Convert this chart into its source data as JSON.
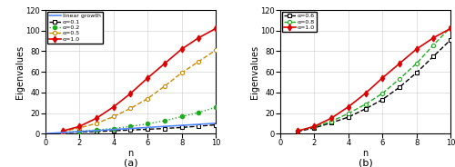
{
  "n": [
    1,
    2,
    3,
    4,
    5,
    6,
    7,
    8,
    9,
    10
  ],
  "linear": [
    0,
    1,
    2,
    3,
    4,
    5,
    6,
    7,
    8,
    9,
    10
  ],
  "linear_n": [
    0,
    1,
    2,
    3,
    4,
    5,
    6,
    7,
    8,
    9,
    10
  ],
  "alpha_01": [
    1.0,
    1.5,
    2.0,
    2.8,
    3.5,
    4.2,
    5.0,
    6.0,
    7.2,
    8.5
  ],
  "alpha_02": [
    1.2,
    2.2,
    3.5,
    5.0,
    7.0,
    9.5,
    12.5,
    16.5,
    20.5,
    25.5
  ],
  "alpha_05": [
    2.0,
    5.5,
    10.0,
    16.5,
    24.5,
    34.0,
    46.0,
    59.0,
    70.0,
    81.0
  ],
  "alpha_10_a": [
    2.5,
    7.0,
    15.0,
    26.0,
    39.0,
    54.0,
    68.0,
    82.0,
    93.0,
    102.0
  ],
  "alpha_06": [
    2.0,
    5.5,
    10.5,
    16.0,
    24.0,
    33.0,
    45.0,
    59.0,
    75.0,
    91.0
  ],
  "alpha_08": [
    2.5,
    6.5,
    12.0,
    19.5,
    28.5,
    39.0,
    53.0,
    68.0,
    86.0,
    103.0
  ],
  "alpha_10_b": [
    2.5,
    7.0,
    15.0,
    26.0,
    39.0,
    54.0,
    68.0,
    82.0,
    93.0,
    102.0
  ],
  "ylim": [
    0,
    120
  ],
  "xlim": [
    0,
    10
  ],
  "ylabel": "Eigenvalues",
  "xlabel": "n",
  "label_a": "(a)",
  "label_b": "(b)",
  "color_linear": "#5588ff",
  "color_01": "#000000",
  "color_02": "#22aa22",
  "color_05": "#cc8800",
  "color_10": "#dd0000",
  "color_06": "#000000",
  "color_08": "#22aa22",
  "legend_a": [
    "linear growth",
    "α=0.1",
    "α=0.2",
    "α=0.5",
    "α=1.0"
  ],
  "legend_b": [
    "α=0.6",
    "α=0.8",
    "α=1.0"
  ],
  "yticks": [
    0,
    20,
    40,
    60,
    80,
    100,
    120
  ],
  "xticks": [
    0,
    2,
    4,
    6,
    8,
    10
  ]
}
